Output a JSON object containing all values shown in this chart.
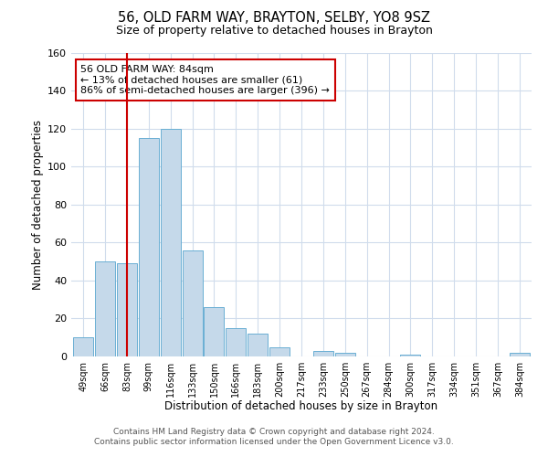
{
  "title": "56, OLD FARM WAY, BRAYTON, SELBY, YO8 9SZ",
  "subtitle": "Size of property relative to detached houses in Brayton",
  "xlabel": "Distribution of detached houses by size in Brayton",
  "ylabel": "Number of detached properties",
  "bar_labels": [
    "49sqm",
    "66sqm",
    "83sqm",
    "99sqm",
    "116sqm",
    "133sqm",
    "150sqm",
    "166sqm",
    "183sqm",
    "200sqm",
    "217sqm",
    "233sqm",
    "250sqm",
    "267sqm",
    "284sqm",
    "300sqm",
    "317sqm",
    "334sqm",
    "351sqm",
    "367sqm",
    "384sqm"
  ],
  "bar_values": [
    10,
    50,
    49,
    115,
    120,
    56,
    26,
    15,
    12,
    5,
    0,
    3,
    2,
    0,
    0,
    1,
    0,
    0,
    0,
    0,
    2
  ],
  "bar_color": "#c5d9ea",
  "bar_edge_color": "#6aafd4",
  "vline_x_index": 2,
  "vline_color": "#cc0000",
  "annotation_text": "56 OLD FARM WAY: 84sqm\n← 13% of detached houses are smaller (61)\n86% of semi-detached houses are larger (396) →",
  "annotation_box_color": "#ffffff",
  "annotation_box_edge": "#cc0000",
  "ylim": [
    0,
    160
  ],
  "yticks": [
    0,
    20,
    40,
    60,
    80,
    100,
    120,
    140,
    160
  ],
  "footnote1": "Contains HM Land Registry data © Crown copyright and database right 2024.",
  "footnote2": "Contains public sector information licensed under the Open Government Licence v3.0.",
  "background_color": "#ffffff",
  "grid_color": "#d0dcec",
  "title_fontsize": 10.5,
  "subtitle_fontsize": 9.0,
  "axis_label_fontsize": 8.5,
  "tick_fontsize": 8,
  "annotation_fontsize": 8.0,
  "footnote_fontsize": 6.5
}
